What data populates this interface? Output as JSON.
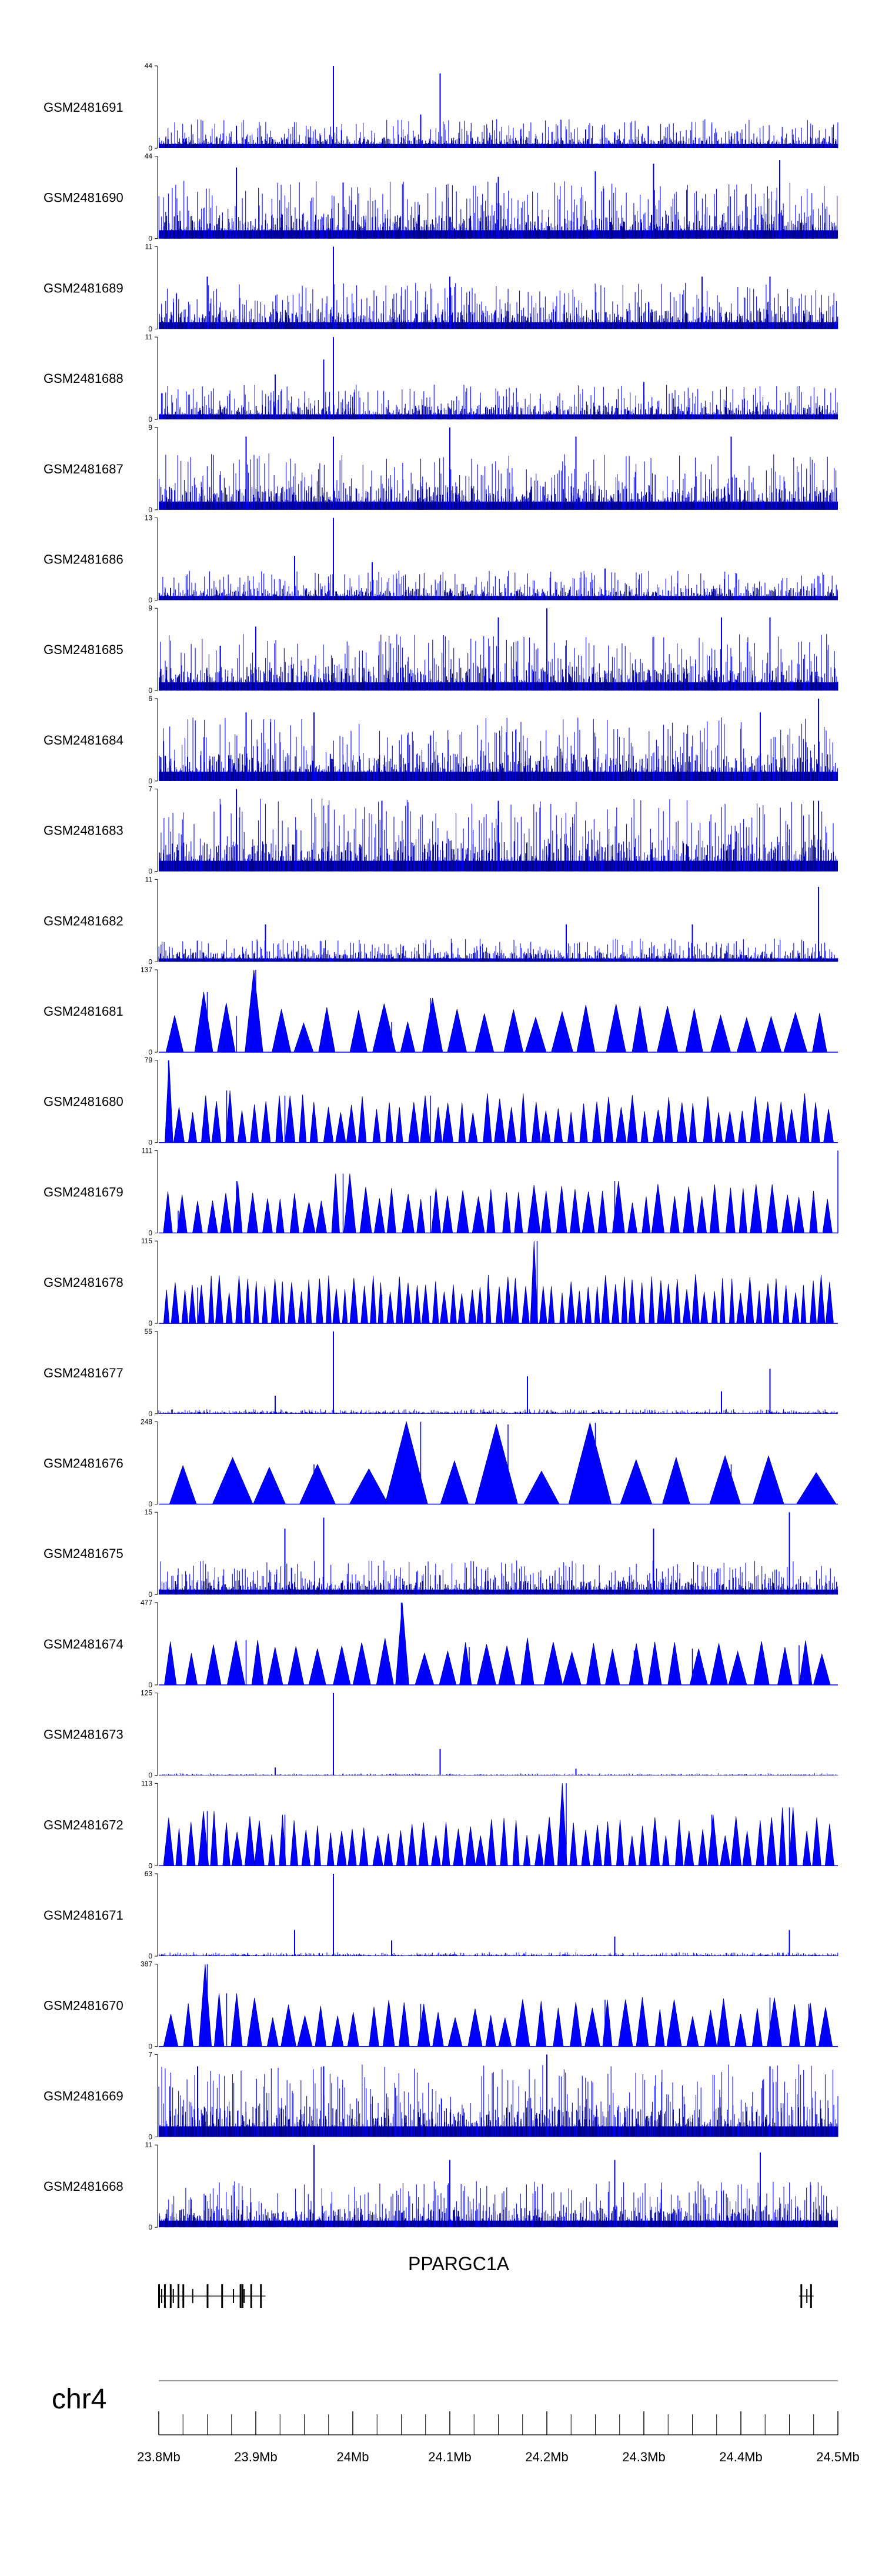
{
  "chart_data": {
    "type": "genome-browser-coverage",
    "series_color": "#0000ff",
    "series_dark_color": "#00008b",
    "x_unit": "Mb",
    "xlim": [
      23.8,
      24.5
    ],
    "tracks": [
      {
        "name": "GSM2481691",
        "ymax": 44,
        "style": "bars",
        "base": 5,
        "peaks": [
          [
            23.98,
            44
          ],
          [
            24.09,
            40
          ],
          [
            24.07,
            18
          ],
          [
            23.88,
            12
          ],
          [
            24.24,
            10
          ]
        ]
      },
      {
        "name": "GSM2481690",
        "ymax": 44,
        "style": "bars",
        "base": 10,
        "peaks": [
          [
            23.88,
            38
          ],
          [
            24.31,
            40
          ],
          [
            24.44,
            42
          ],
          [
            23.99,
            30
          ],
          [
            24.25,
            36
          ],
          [
            24.15,
            33
          ]
        ]
      },
      {
        "name": "GSM2481689",
        "ymax": 11,
        "style": "bars",
        "base": 2,
        "peaks": [
          [
            23.98,
            11
          ],
          [
            23.85,
            7
          ],
          [
            24.1,
            7
          ],
          [
            24.36,
            7
          ],
          [
            24.43,
            7
          ]
        ]
      },
      {
        "name": "GSM2481688",
        "ymax": 11,
        "style": "bars",
        "base": 1.5,
        "peaks": [
          [
            23.98,
            11
          ],
          [
            23.97,
            8
          ],
          [
            23.92,
            6
          ],
          [
            24.3,
            5
          ]
        ]
      },
      {
        "name": "GSM2481687",
        "ymax": 9,
        "style": "bars",
        "base": 2,
        "peaks": [
          [
            23.98,
            8
          ],
          [
            24.1,
            9
          ],
          [
            23.89,
            8
          ],
          [
            24.23,
            8
          ],
          [
            24.39,
            8
          ]
        ]
      },
      {
        "name": "GSM2481686",
        "ymax": 13,
        "style": "bars",
        "base": 1.5,
        "peaks": [
          [
            23.98,
            13
          ],
          [
            23.94,
            7
          ],
          [
            24.02,
            6
          ],
          [
            24.26,
            5
          ]
        ]
      },
      {
        "name": "GSM2481685",
        "ymax": 9,
        "style": "bars",
        "base": 2,
        "peaks": [
          [
            24.2,
            9
          ],
          [
            24.15,
            8
          ],
          [
            24.38,
            8
          ],
          [
            23.9,
            7
          ],
          [
            24.43,
            8
          ]
        ]
      },
      {
        "name": "GSM2481684",
        "ymax": 6,
        "style": "bars",
        "base": 1.5,
        "peaks": [
          [
            24.48,
            6
          ],
          [
            24.42,
            5
          ],
          [
            23.96,
            5
          ],
          [
            23.89,
            5
          ]
        ]
      },
      {
        "name": "GSM2481683",
        "ymax": 7,
        "style": "bars",
        "base": 2,
        "peaks": [
          [
            23.88,
            7
          ],
          [
            24.48,
            6
          ],
          [
            24.15,
            6
          ],
          [
            24.03,
            6
          ]
        ]
      },
      {
        "name": "GSM2481682",
        "ymax": 11,
        "style": "bars",
        "base": 1,
        "peaks": [
          [
            24.48,
            10
          ],
          [
            23.91,
            5
          ],
          [
            24.22,
            5
          ],
          [
            24.35,
            5
          ]
        ]
      },
      {
        "name": "GSM2481681",
        "ymax": 137,
        "style": "triangles",
        "count": 26,
        "peaks": [
          [
            23.85,
            100
          ],
          [
            23.9,
            137
          ],
          [
            23.88,
            60
          ],
          [
            24.08,
            90
          ],
          [
            24.04,
            50
          ]
        ]
      },
      {
        "name": "GSM2481680",
        "ymax": 79,
        "style": "triangles",
        "count": 55,
        "peaks": [
          [
            23.81,
            79
          ],
          [
            23.87,
            50
          ],
          [
            23.93,
            45
          ],
          [
            24.08,
            45
          ]
        ]
      },
      {
        "name": "GSM2481679",
        "ymax": 111,
        "style": "triangles",
        "count": 48,
        "peaks": [
          [
            24.5,
            111
          ],
          [
            23.99,
            80
          ],
          [
            23.88,
            70
          ],
          [
            24.08,
            50
          ],
          [
            24.27,
            70
          ],
          [
            23.82,
            30
          ]
        ]
      },
      {
        "name": "GSM2481678",
        "ymax": 115,
        "style": "triangles",
        "count": 75,
        "peaks": [
          [
            24.19,
            115
          ],
          [
            24.28,
            40
          ],
          [
            23.84,
            50
          ],
          [
            24.03,
            40
          ],
          [
            24.41,
            40
          ]
        ]
      },
      {
        "name": "GSM2481677",
        "ymax": 55,
        "style": "bars",
        "base": 1,
        "peaks": [
          [
            23.98,
            55
          ],
          [
            24.43,
            30
          ],
          [
            24.18,
            25
          ],
          [
            24.38,
            15
          ],
          [
            23.92,
            12
          ]
        ]
      },
      {
        "name": "GSM2481676",
        "ymax": 248,
        "style": "triangles",
        "count": 15,
        "peaks": [
          [
            24.07,
            248
          ],
          [
            24.16,
            240
          ],
          [
            24.25,
            245
          ],
          [
            23.96,
            120
          ],
          [
            24.39,
            120
          ]
        ]
      },
      {
        "name": "GSM2481675",
        "ymax": 15,
        "style": "bars",
        "base": 2,
        "peaks": [
          [
            24.45,
            15
          ],
          [
            23.97,
            14
          ],
          [
            23.93,
            12
          ],
          [
            24.31,
            12
          ]
        ]
      },
      {
        "name": "GSM2481674",
        "ymax": 477,
        "style": "triangles",
        "count": 32,
        "peaks": [
          [
            24.05,
            477
          ],
          [
            24.12,
            220
          ],
          [
            24.29,
            200
          ],
          [
            24.35,
            210
          ],
          [
            23.89,
            260
          ],
          [
            24.46,
            230
          ]
        ]
      },
      {
        "name": "GSM2481673",
        "ymax": 125,
        "style": "bars",
        "base": 1,
        "peaks": [
          [
            23.98,
            125
          ],
          [
            24.09,
            40
          ],
          [
            23.92,
            12
          ],
          [
            24.23,
            10
          ]
        ]
      },
      {
        "name": "GSM2481672",
        "ymax": 113,
        "style": "triangles",
        "count": 58,
        "peaks": [
          [
            24.22,
            113
          ],
          [
            23.85,
            75
          ],
          [
            23.93,
            70
          ],
          [
            24.45,
            80
          ],
          [
            24.37,
            70
          ]
        ]
      },
      {
        "name": "GSM2481671",
        "ymax": 63,
        "style": "bars",
        "base": 1,
        "peaks": [
          [
            23.98,
            63
          ],
          [
            23.94,
            20
          ],
          [
            24.45,
            20
          ],
          [
            24.27,
            15
          ],
          [
            24.04,
            12
          ]
        ]
      },
      {
        "name": "GSM2481670",
        "ymax": 387,
        "style": "triangles",
        "count": 40,
        "peaks": [
          [
            23.85,
            387
          ],
          [
            23.87,
            250
          ],
          [
            24.26,
            220
          ],
          [
            24.43,
            230
          ],
          [
            24.07,
            200
          ],
          [
            24.47,
            200
          ]
        ]
      },
      {
        "name": "GSM2481669",
        "ymax": 7,
        "style": "bars",
        "base": 2,
        "peaks": [
          [
            24.2,
            7
          ],
          [
            24.43,
            6
          ],
          [
            23.84,
            6
          ],
          [
            23.97,
            6
          ]
        ]
      },
      {
        "name": "GSM2481668",
        "ymax": 11,
        "style": "bars",
        "base": 2,
        "peaks": [
          [
            23.96,
            11
          ],
          [
            24.1,
            9
          ],
          [
            24.27,
            9
          ],
          [
            24.42,
            10
          ]
        ]
      }
    ],
    "gene": {
      "name": "PPARGC1A",
      "clusters": [
        {
          "start": 23.8,
          "end": 23.91,
          "exons": [
            23.8,
            23.803,
            23.806,
            23.812,
            23.815,
            23.82,
            23.825,
            23.835,
            23.85,
            23.865,
            23.877,
            23.884,
            23.886,
            23.888,
            23.895,
            23.905
          ]
        },
        {
          "start": 24.46,
          "end": 24.475,
          "exons": [
            24.462,
            24.468,
            24.472
          ]
        }
      ]
    },
    "chromosome": "chr4",
    "x_ticks": [
      23.8,
      23.9,
      24.0,
      24.1,
      24.2,
      24.3,
      24.4,
      24.5
    ],
    "x_tick_labels": [
      "23.8Mb",
      "23.9Mb",
      "24Mb",
      "24.1Mb",
      "24.2Mb",
      "24.3Mb",
      "24.4Mb",
      "24.5Mb"
    ],
    "minor_tick_step": 0.025
  }
}
